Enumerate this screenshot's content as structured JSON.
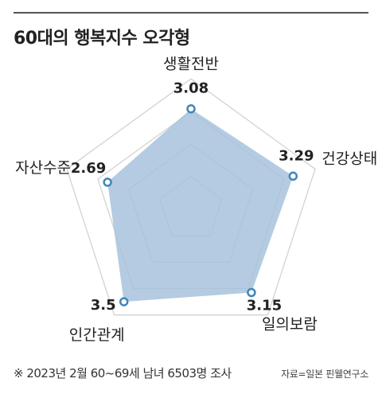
{
  "title": "60대의 행복지수 오각형",
  "chart_data": {
    "type": "radar",
    "title": "60대의 행복지수 오각형",
    "axes": [
      "생활전반",
      "건강상태",
      "일의보람",
      "인간관계",
      "자산수준"
    ],
    "values": [
      3.08,
      3.29,
      3.15,
      3.5,
      2.69
    ],
    "value_labels": [
      "3.08",
      "3.29",
      "3.15",
      "3.5",
      "2.69"
    ],
    "range": [
      0,
      4
    ],
    "grid_rings": 4,
    "colors": {
      "fill": "#a7c2dc",
      "marker": "#3f87b9",
      "grid": "#d2d2d2"
    }
  },
  "footer": {
    "note": "※ 2023년 2월 60~69세 남녀 6503명 조사",
    "source": "자료=일본 핀웰연구소"
  }
}
